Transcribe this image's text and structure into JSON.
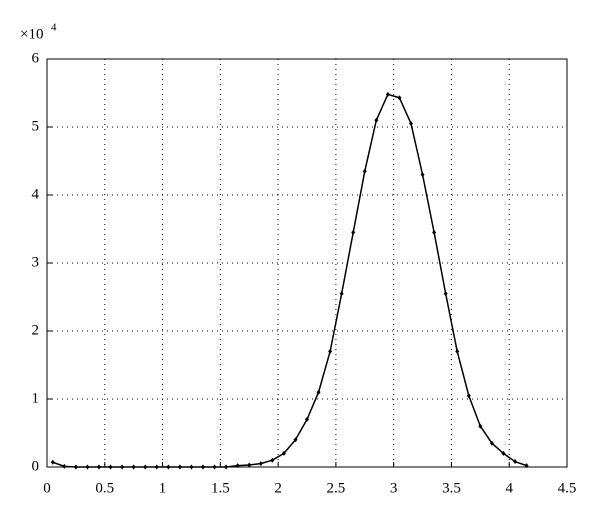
{
  "chart_data": {
    "type": "line",
    "y_multiplier": "×10",
    "y_multiplier_exp": "4",
    "x": [
      0.05,
      0.15,
      0.25,
      0.35,
      0.45,
      0.55,
      0.65,
      0.75,
      0.85,
      0.95,
      1.05,
      1.15,
      1.25,
      1.35,
      1.45,
      1.55,
      1.65,
      1.75,
      1.85,
      1.95,
      2.05,
      2.15,
      2.25,
      2.35,
      2.45,
      2.55,
      2.65,
      2.75,
      2.85,
      2.95,
      3.05,
      3.15,
      3.25,
      3.35,
      3.45,
      3.55,
      3.65,
      3.75,
      3.85,
      3.95,
      4.05,
      4.15
    ],
    "series": [
      {
        "color": "#000000",
        "values": [
          0.07,
          0.01,
          0,
          0,
          0,
          0,
          0,
          0,
          0,
          0,
          0,
          0,
          0,
          0,
          0,
          0,
          0.02,
          0.03,
          0.05,
          0.1,
          0.2,
          0.4,
          0.7,
          1.1,
          1.7,
          2.55,
          3.45,
          4.35,
          5.1,
          5.48,
          5.43,
          5.05,
          4.3,
          3.45,
          2.55,
          1.7,
          1.05,
          0.6,
          0.35,
          0.2,
          0.08,
          0.02
        ]
      }
    ],
    "xlim": [
      0,
      4.5
    ],
    "ylim": [
      0,
      6
    ],
    "xticks": [
      0,
      0.5,
      1,
      1.5,
      2,
      2.5,
      3,
      3.5,
      4,
      4.5
    ],
    "yticks": [
      0,
      1,
      2,
      3,
      4,
      5,
      6
    ],
    "grid": true
  }
}
